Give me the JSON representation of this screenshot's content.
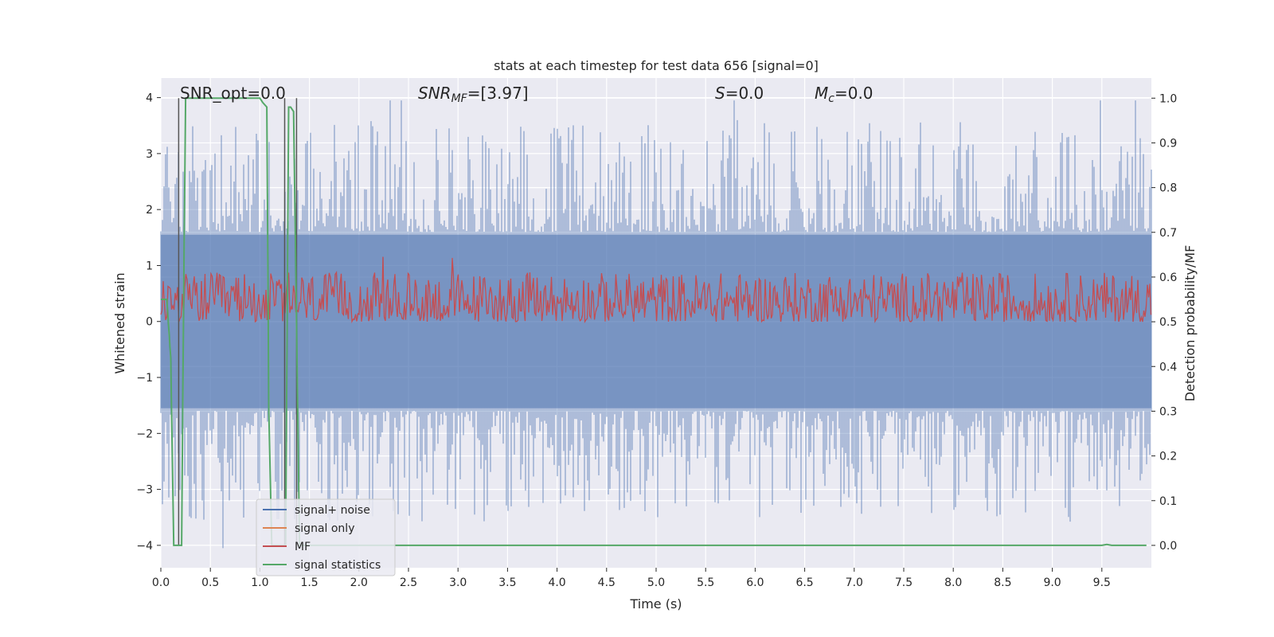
{
  "chart_data": {
    "type": "line",
    "title": "stats at each timestep for test data 656 [signal=0]",
    "xlabel": "Time (s)",
    "ylabel": "Whitened strain",
    "y2label": "Detection probability/MF",
    "xlim": [
      0.0,
      10.0
    ],
    "ylim": [
      -4.4,
      4.35
    ],
    "y2lim": [
      -0.05,
      1.045
    ],
    "x_ticks": [
      "0.0",
      "0.5",
      "1.0",
      "1.5",
      "2.0",
      "2.5",
      "3.0",
      "3.5",
      "4.0",
      "4.5",
      "5.0",
      "5.5",
      "6.0",
      "6.5",
      "7.0",
      "7.5",
      "8.0",
      "8.5",
      "9.0",
      "9.5"
    ],
    "y_ticks": [
      "4",
      "3",
      "2",
      "1",
      "0",
      "−1",
      "−2",
      "−3",
      "−4"
    ],
    "y2_ticks": [
      "1.0",
      "0.9",
      "0.8",
      "0.7",
      "0.6",
      "0.5",
      "0.4",
      "0.3",
      "0.2",
      "0.1",
      "0.0"
    ],
    "grid": true,
    "legend_placement": "lower-left",
    "annotations": {
      "snr_opt": "SNR_opt=0.0",
      "snr_mf_sym": "SNR",
      "snr_mf_sub": "MF",
      "snr_mf_val": "=[3.97]",
      "s_sym": "S",
      "s_val": "=0.0",
      "mc_sym": "M",
      "mc_sub": "c",
      "mc_val": "=0.0"
    },
    "series": [
      {
        "name": "signal+ noise",
        "color": "#4c72b0",
        "axis": "left",
        "description_values": "whitened strain noise, amplitude mostly within ±1.6, peaks up to ±3.9",
        "envelope_core": 1.55,
        "peak_max": 3.95,
        "peak_min": -4.05
      },
      {
        "name": "signal only",
        "color": "#dd8452",
        "axis": "left",
        "values": "all zero"
      },
      {
        "name": "MF",
        "color": "#c44e52",
        "axis": "right",
        "range": [
          0.5,
          0.63
        ]
      },
      {
        "name": "signal statistics",
        "color": "#55a868",
        "axis": "right",
        "x": [
          0.0,
          0.03,
          0.06,
          0.1,
          0.13,
          0.18,
          0.21,
          0.23,
          0.25,
          0.3,
          0.5,
          0.8,
          1.0,
          1.03,
          1.07,
          1.09,
          1.12,
          1.16,
          1.19,
          1.21,
          1.24,
          1.26,
          1.29,
          1.31,
          1.34,
          1.37,
          1.4,
          1.43,
          1.5,
          2.0,
          3.0,
          4.0,
          5.0,
          6.0,
          7.0,
          8.0,
          9.0,
          9.5,
          9.55,
          9.6,
          9.95
        ],
        "y": [
          0.55,
          0.55,
          0.55,
          0.42,
          0.0,
          0.0,
          0.0,
          0.55,
          1.0,
          1.0,
          1.0,
          1.0,
          1.0,
          0.99,
          0.98,
          0.3,
          0.0,
          0.0,
          0.0,
          0.0,
          0.0,
          0.0,
          0.98,
          0.98,
          0.97,
          0.5,
          0.0,
          0.0,
          0.0,
          0.0,
          0.0,
          0.0,
          0.0,
          0.0,
          0.0,
          0.0,
          0.0,
          0.0,
          0.002,
          0.0,
          0.0
        ]
      }
    ],
    "vlines": [
      0.18,
      1.25,
      1.37
    ],
    "vline_color": "#555555"
  }
}
